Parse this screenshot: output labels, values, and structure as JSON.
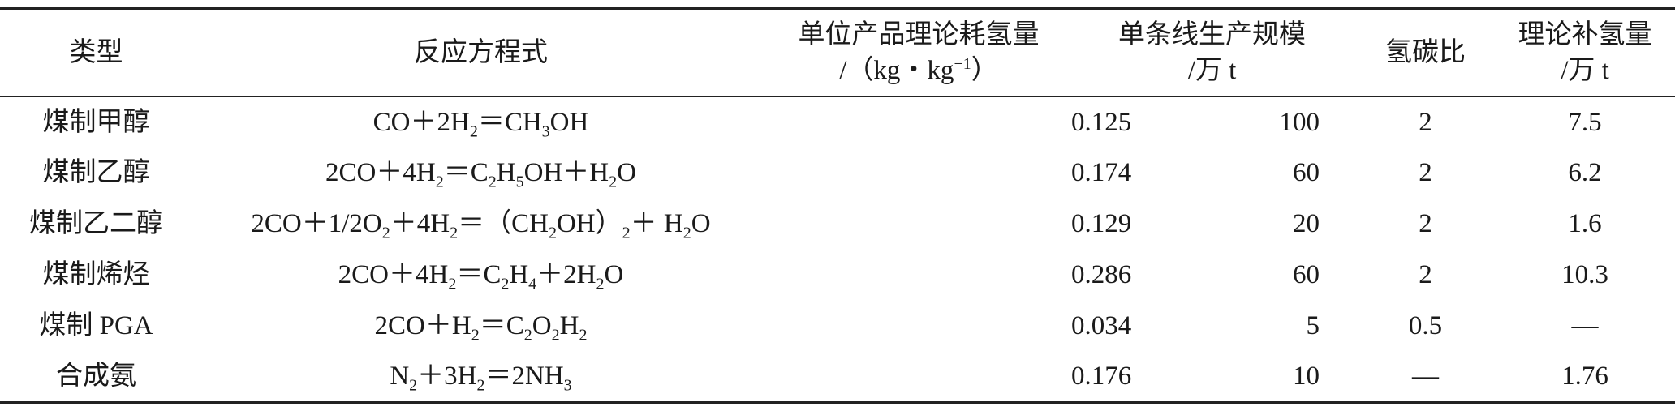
{
  "table": {
    "header": [
      [
        "类型"
      ],
      [
        "反应方程式"
      ],
      [
        "单位产品理论耗氢量",
        [
          {
            "text": "/（kg・kg"
          },
          {
            "sup": "−1"
          },
          {
            "text": "）"
          }
        ]
      ],
      [
        "单条线生产规模",
        "/万 t"
      ],
      [
        "氢碳比"
      ],
      [
        "理论补氢量",
        "/万 t"
      ]
    ],
    "rows": [
      [
        "煤制甲醇",
        [
          {
            "text": "CO＋2H"
          },
          {
            "sub": "2"
          },
          {
            "text": "＝CH"
          },
          {
            "sub": "3"
          },
          {
            "text": "OH"
          }
        ],
        "0.125",
        "100",
        "2",
        "7.5"
      ],
      [
        "煤制乙醇",
        [
          {
            "text": "2CO＋4H"
          },
          {
            "sub": "2"
          },
          {
            "text": "＝C"
          },
          {
            "sub": "2"
          },
          {
            "text": "H"
          },
          {
            "sub": "5"
          },
          {
            "text": "OH＋H"
          },
          {
            "sub": "2"
          },
          {
            "text": "O"
          }
        ],
        "0.174",
        "60",
        "2",
        "6.2"
      ],
      [
        "煤制乙二醇",
        [
          {
            "text": "2CO＋1/2O"
          },
          {
            "sub": "2"
          },
          {
            "text": "＋4H"
          },
          {
            "sub": "2"
          },
          {
            "text": "＝（CH"
          },
          {
            "sub": "2"
          },
          {
            "text": "OH）"
          },
          {
            "sub": "2"
          },
          {
            "text": "＋ H"
          },
          {
            "sub": "2"
          },
          {
            "text": "O"
          }
        ],
        "0.129",
        "20",
        "2",
        "1.6"
      ],
      [
        "煤制烯烃",
        [
          {
            "text": "2CO＋4H"
          },
          {
            "sub": "2"
          },
          {
            "text": "＝C"
          },
          {
            "sub": "2"
          },
          {
            "text": "H"
          },
          {
            "sub": "4"
          },
          {
            "text": "＋2H"
          },
          {
            "sub": "2"
          },
          {
            "text": "O"
          }
        ],
        "0.286",
        "60",
        "2",
        "10.3"
      ],
      [
        "煤制 PGA",
        [
          {
            "text": "2CO＋H"
          },
          {
            "sub": "2"
          },
          {
            "text": "＝C"
          },
          {
            "sub": "2"
          },
          {
            "text": "O"
          },
          {
            "sub": "2"
          },
          {
            "text": "H"
          },
          {
            "sub": "2"
          }
        ],
        "0.034",
        "5",
        "0.5",
        "—"
      ],
      [
        "合成氨",
        [
          {
            "text": "N"
          },
          {
            "sub": "2"
          },
          {
            "text": "＋3H"
          },
          {
            "sub": "2"
          },
          {
            "text": "＝2NH"
          },
          {
            "sub": "3"
          }
        ],
        "0.176",
        "10",
        "—",
        "1.76"
      ]
    ]
  }
}
